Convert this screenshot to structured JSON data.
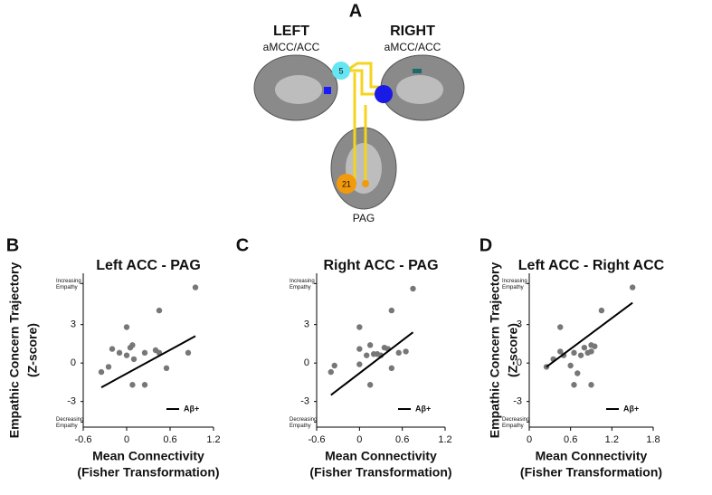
{
  "panel_a": {
    "label": "A",
    "left": {
      "title": "LEFT",
      "region": "aMCC/ACC"
    },
    "right": {
      "title": "RIGHT",
      "region": "aMCC/ACC"
    },
    "nodes": [
      {
        "label": "5"
      },
      {
        "label": "21"
      }
    ],
    "bottom": "PAG"
  },
  "chart_data": [
    {
      "type": "scatter",
      "panel_label": "B",
      "title": "Left ACC - PAG",
      "y_label": [
        "Empathic Concern Trajectory",
        "(Z-score)"
      ],
      "x_label": [
        "Mean Connectivity",
        "(Fisher Transformation)"
      ],
      "xlim": [
        -0.6,
        1.2
      ],
      "xticks": [
        -0.6,
        0.0,
        0.6,
        1.2
      ],
      "ylim": [
        -5,
        7
      ],
      "yticks": [
        {
          "value": -4.6,
          "label": "Decreasing Empathy"
        },
        -3,
        0,
        3,
        {
          "value": 6.2,
          "label": "Increasing Empathy"
        }
      ],
      "point_color": "#777777",
      "x": [
        -0.35,
        -0.25,
        -0.2,
        -0.1,
        0.0,
        0.0,
        0.05,
        0.08,
        0.1,
        0.08,
        0.25,
        0.25,
        0.4,
        0.45,
        0.45,
        0.55,
        0.85,
        0.95
      ],
      "values": [
        -0.7,
        -0.3,
        1.1,
        0.8,
        2.8,
        0.6,
        1.2,
        1.4,
        0.3,
        -1.7,
        0.8,
        -1.7,
        1.0,
        4.1,
        0.8,
        -0.4,
        0.8,
        5.9
      ],
      "trend_line": {
        "name": "Aβ+",
        "color": "#000000",
        "x": [
          -0.35,
          0.95
        ],
        "values": [
          -1.9,
          2.1
        ]
      }
    },
    {
      "type": "scatter",
      "panel_label": "C",
      "title": "Right ACC - PAG",
      "x_label": [
        "Mean Connectivity",
        "(Fisher Transformation)"
      ],
      "xlim": [
        -0.6,
        1.2
      ],
      "xticks": [
        -0.6,
        0.0,
        0.6,
        1.2
      ],
      "ylim": [
        -5,
        7
      ],
      "yticks": [
        {
          "value": -4.6,
          "label": "Decreasing Empathy"
        },
        -3,
        0,
        3,
        {
          "value": 6.2,
          "label": "Increasing Empathy"
        }
      ],
      "point_color": "#777777",
      "x": [
        -0.4,
        -0.35,
        0.0,
        0.0,
        0.0,
        0.1,
        0.15,
        0.15,
        0.2,
        0.25,
        0.3,
        0.35,
        0.4,
        0.45,
        0.45,
        0.55,
        0.65,
        0.75
      ],
      "values": [
        -0.7,
        -0.2,
        2.8,
        1.1,
        -0.1,
        0.6,
        1.4,
        -1.7,
        0.7,
        0.7,
        0.6,
        1.2,
        1.1,
        4.1,
        -0.4,
        0.8,
        0.9,
        5.8
      ],
      "trend_line": {
        "name": "Aβ+",
        "color": "#000000",
        "x": [
          -0.4,
          0.75
        ],
        "values": [
          -2.5,
          2.4
        ]
      }
    },
    {
      "type": "scatter",
      "panel_label": "D",
      "title": "Left ACC - Right ACC",
      "y_label": [
        "Empathic Concern Trajectory",
        "(Z-score)"
      ],
      "x_label": [
        "Mean Connectivity",
        "(Fisher Transformation)"
      ],
      "xlim": [
        0.0,
        1.8
      ],
      "xticks": [
        0.0,
        0.6,
        1.2,
        1.8
      ],
      "ylim": [
        -5,
        7
      ],
      "yticks": [
        {
          "value": -4.6,
          "label": "Decreasing Empathy"
        },
        -3,
        0,
        3,
        {
          "value": 6.2,
          "label": "Increasing Empathy"
        }
      ],
      "point_color": "#777777",
      "x": [
        0.25,
        0.35,
        0.45,
        0.45,
        0.5,
        0.6,
        0.65,
        0.65,
        0.7,
        0.75,
        0.8,
        0.85,
        0.9,
        0.9,
        0.95,
        0.9,
        1.05,
        1.5
      ],
      "values": [
        -0.3,
        0.3,
        0.9,
        2.8,
        0.6,
        -0.2,
        -1.7,
        0.8,
        -0.8,
        0.6,
        1.2,
        0.8,
        0.9,
        1.4,
        1.3,
        -1.7,
        4.1,
        5.9
      ],
      "trend_line": {
        "name": "Aβ+",
        "color": "#000000",
        "x": [
          0.25,
          1.5
        ],
        "values": [
          -0.3,
          4.7
        ]
      }
    }
  ]
}
